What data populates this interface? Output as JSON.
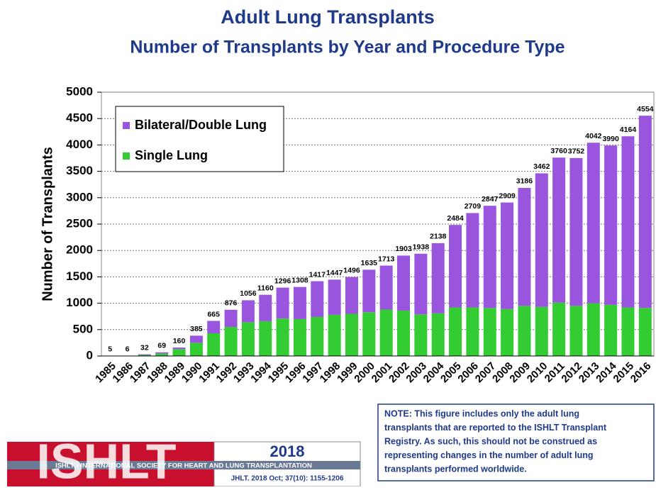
{
  "chart_data": {
    "type": "stacked-bar",
    "title": "Adult Lung Transplants",
    "subtitle": "Number of Transplants by Year and Procedure Type",
    "ylabel": "Number of Transplants",
    "categories": [
      "1985",
      "1986",
      "1987",
      "1988",
      "1989",
      "1990",
      "1991",
      "1992",
      "1993",
      "1994",
      "1995",
      "1996",
      "1997",
      "1998",
      "1999",
      "2000",
      "2001",
      "2002",
      "2003",
      "2004",
      "2005",
      "2006",
      "2007",
      "2008",
      "2009",
      "2010",
      "2011",
      "2012",
      "2013",
      "2014",
      "2015",
      "2016"
    ],
    "series": [
      {
        "name": "Single Lung",
        "color": "#33cc33",
        "values": [
          5,
          6,
          20,
          45,
          130,
          250,
          430,
          550,
          640,
          660,
          710,
          700,
          740,
          780,
          800,
          830,
          880,
          860,
          790,
          810,
          920,
          920,
          910,
          890,
          950,
          930,
          1010,
          950,
          1000,
          970,
          920,
          910
        ]
      },
      {
        "name": "Bilateral/Double Lung",
        "color": "#9955dd",
        "values": [
          0,
          0,
          12,
          24,
          30,
          135,
          235,
          326,
          416,
          500,
          586,
          608,
          677,
          667,
          696,
          805,
          833,
          1043,
          1148,
          1328,
          1564,
          1789,
          1937,
          2019,
          2236,
          2532,
          2750,
          2802,
          3042,
          3020,
          3244,
          3644
        ]
      }
    ],
    "totals": [
      5,
      6,
      32,
      69,
      160,
      385,
      665,
      876,
      1056,
      1160,
      1296,
      1308,
      1417,
      1447,
      1496,
      1635,
      1713,
      1903,
      1938,
      2138,
      2484,
      2709,
      2847,
      2909,
      3186,
      3462,
      3760,
      3752,
      4042,
      3990,
      4164,
      4554
    ],
    "ylim": [
      0,
      5000
    ],
    "yticks": [
      0,
      500,
      1000,
      1500,
      2000,
      2500,
      3000,
      3500,
      4000,
      4500,
      5000
    ],
    "grid": true
  },
  "note": [
    "NOTE: This figure includes only the adult lung",
    "transplants that are reported to the ISHLT Transplant",
    "Registry.  As such, this should not be construed as",
    "representing changes in the number of adult lung",
    "transplants performed worldwide."
  ],
  "logo": {
    "mark": "ISHLT",
    "society": "ISHLT • INTERNATIONAL SOCIETY FOR HEART AND LUNG TRANSPLANTATION",
    "year": "2018",
    "citation": "JHLT. 2018 Oct; 37(10):  1155-1206"
  }
}
